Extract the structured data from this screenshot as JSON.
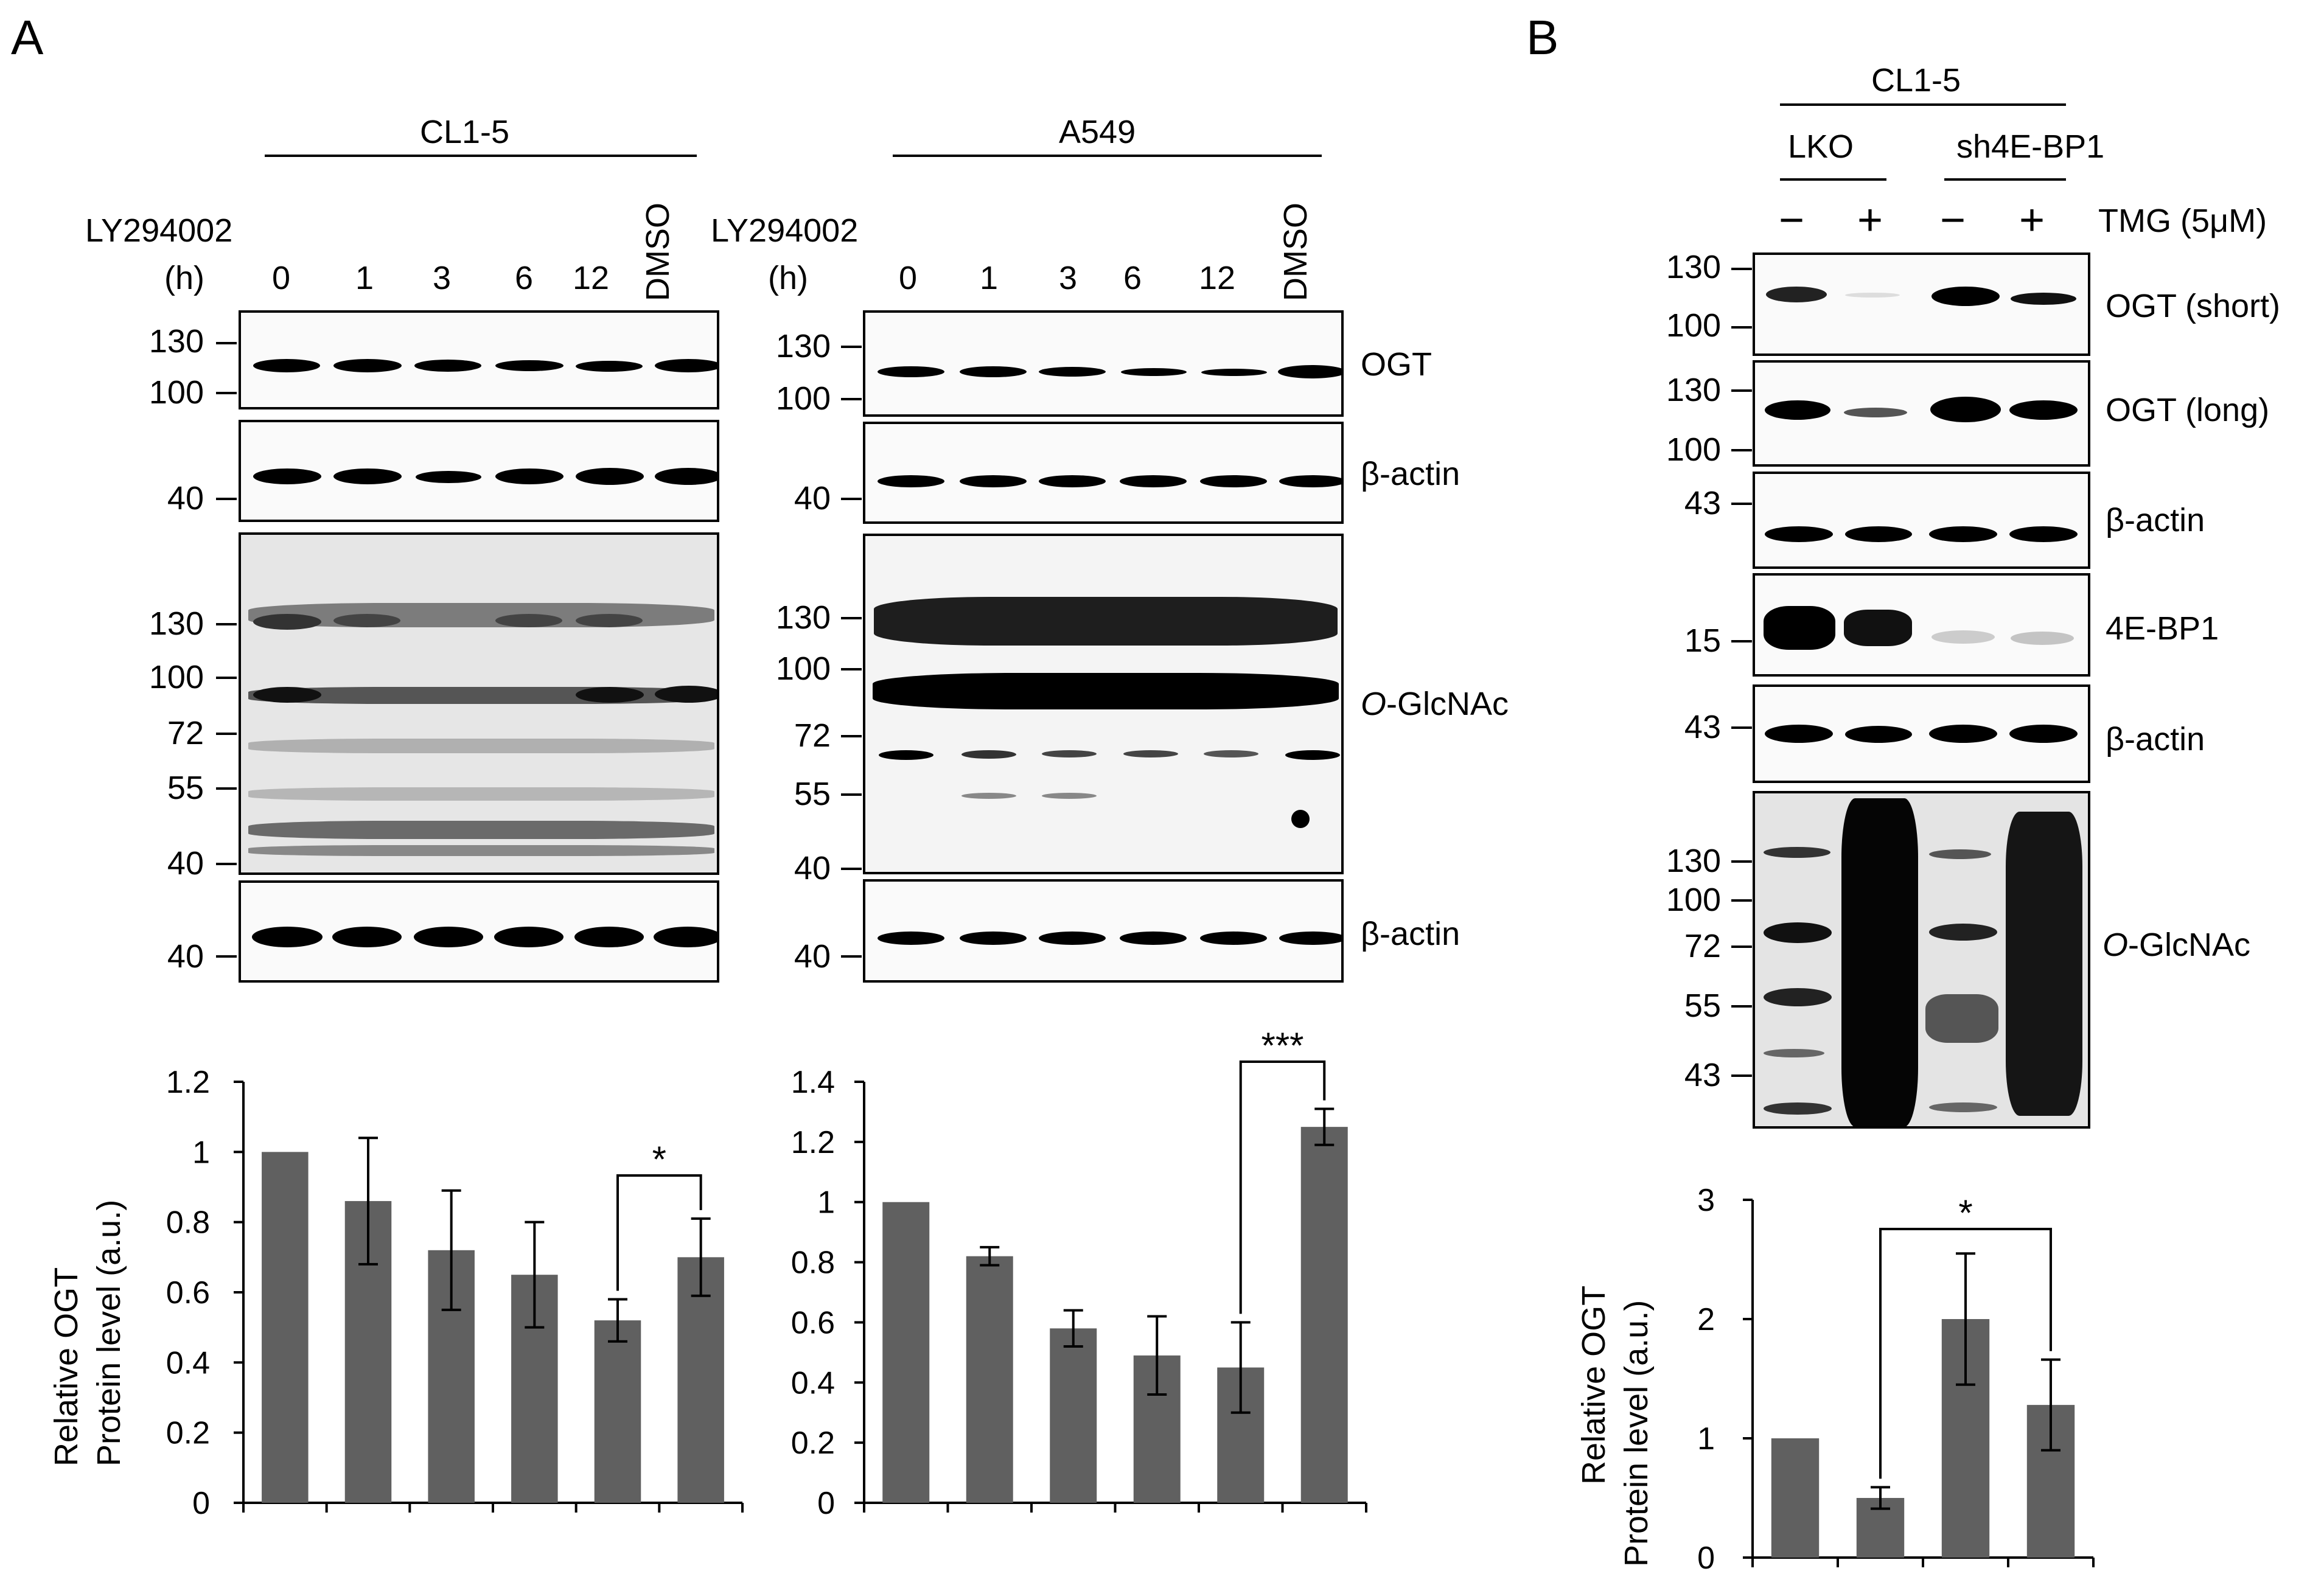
{
  "panels": {
    "a": "A",
    "b": "B"
  },
  "panelA": {
    "cl": {
      "cell_line": "CL1-5",
      "treatment": "LY294002",
      "unit": "(h)",
      "lanes": [
        "0",
        "1",
        "3",
        "6",
        "12"
      ],
      "dmso": "DMSO",
      "mw": {
        "ogt": [
          "130",
          "100"
        ],
        "actin1": [
          "40"
        ],
        "glc": [
          "130",
          "100",
          "72",
          "55",
          "40"
        ],
        "actin2": [
          "40"
        ]
      }
    },
    "a549": {
      "cell_line": "A549",
      "treatment": "LY294002",
      "unit": "(h)",
      "lanes": [
        "0",
        "1",
        "3",
        "6",
        "12"
      ],
      "dmso": "DMSO",
      "mw": {
        "ogt": [
          "130",
          "100"
        ],
        "actin1": [
          "40"
        ],
        "glc": [
          "130",
          "100",
          "72",
          "55",
          "40"
        ],
        "actin2": [
          "40"
        ]
      }
    },
    "row_labels": {
      "ogt": "OGT",
      "actin1": "β-actin",
      "glc_italic": "O",
      "glc_rest": "-GlcNAc",
      "actin2": "β-actin"
    },
    "ylabel_line1": "Relative OGT",
    "ylabel_line2": "Protein level (a.u.)"
  },
  "panelB": {
    "cell_line": "CL1-5",
    "groups": [
      "LKO",
      "sh4E-BP1"
    ],
    "signs": [
      "−",
      "+",
      "−",
      "+"
    ],
    "tmg": "TMG (5μM)",
    "mw": {
      "ogt_short": [
        "130",
        "100"
      ],
      "ogt_long": [
        "130",
        "100"
      ],
      "actin1": [
        "43"
      ],
      "ebp": [
        "15"
      ],
      "actin2": [
        "43"
      ],
      "glc": [
        "130",
        "100",
        "72",
        "55",
        "43"
      ]
    },
    "row_labels": {
      "ogt_short": "OGT (short)",
      "ogt_long": "OGT (long)",
      "actin1": "β-actin",
      "ebp": "4E-BP1",
      "actin2": "β-actin",
      "glc_italic": "O",
      "glc_rest": "-GlcNAc"
    },
    "ylabel_line1": "Relative OGT",
    "ylabel_line2": "Protein level (a.u.)"
  },
  "chart_data": [
    {
      "type": "bar",
      "panel": "A (CL1-5)",
      "categories": [
        "0",
        "1",
        "3",
        "6",
        "12",
        "DMSO"
      ],
      "values": [
        1.0,
        0.86,
        0.72,
        0.65,
        0.52,
        0.7
      ],
      "errors": [
        0.0,
        0.18,
        0.17,
        0.15,
        0.06,
        0.11
      ],
      "ylabel": "Relative OGT Protein level (a.u.)",
      "ylim": [
        0,
        1.2
      ],
      "yticks": [
        "0",
        "0.2",
        "0.4",
        "0.6",
        "0.8",
        "1",
        "1.2"
      ],
      "significance": {
        "between": [
          "12",
          "DMSO"
        ],
        "label": "*"
      },
      "color": "#606060"
    },
    {
      "type": "bar",
      "panel": "A (A549)",
      "categories": [
        "0",
        "1",
        "3",
        "6",
        "12",
        "DMSO"
      ],
      "values": [
        1.0,
        0.82,
        0.58,
        0.49,
        0.45,
        1.25
      ],
      "errors": [
        0.0,
        0.03,
        0.06,
        0.13,
        0.15,
        0.06
      ],
      "ylim": [
        0,
        1.4
      ],
      "yticks": [
        "0",
        "0.2",
        "0.4",
        "0.6",
        "0.8",
        "1",
        "1.2",
        "1.4"
      ],
      "significance": {
        "between": [
          "12",
          "DMSO"
        ],
        "label": "***"
      },
      "color": "#606060"
    },
    {
      "type": "bar",
      "panel": "B",
      "categories": [
        "LKO −",
        "LKO +",
        "sh4E-BP1 −",
        "sh4E-BP1 +"
      ],
      "values": [
        1.0,
        0.5,
        2.0,
        1.28
      ],
      "errors": [
        0.0,
        0.09,
        0.55,
        0.38
      ],
      "ylabel": "Relative OGT Protein level (a.u.)",
      "ylim": [
        0,
        3
      ],
      "yticks": [
        "0",
        "1",
        "2",
        "3"
      ],
      "significance": {
        "between": [
          "LKO +",
          "sh4E-BP1 +"
        ],
        "label": "*"
      },
      "color": "#606060"
    }
  ]
}
